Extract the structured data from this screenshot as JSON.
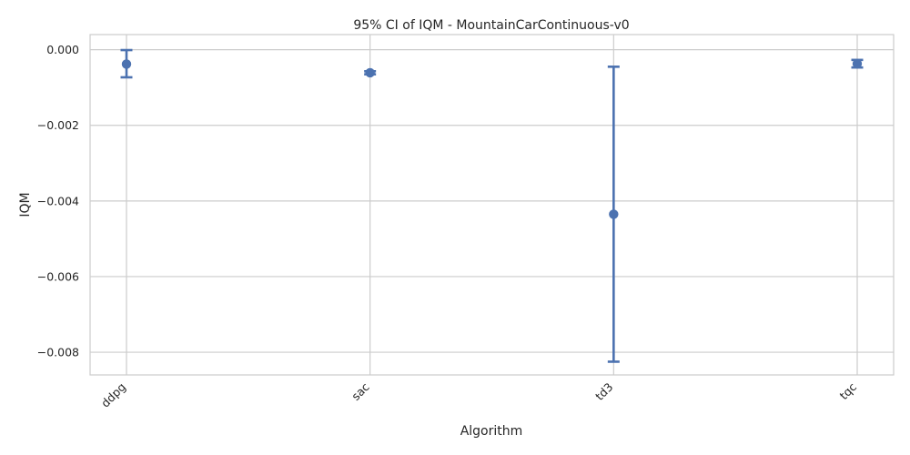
{
  "chart_data": {
    "type": "scatter",
    "title": "95% CI of IQM - MountainCarContinuous-v0",
    "xlabel": "Algorithm",
    "ylabel": "IQM",
    "categories": [
      "ddpg",
      "sac",
      "td3",
      "tqc"
    ],
    "series": [
      {
        "values": [
          -0.00038,
          -0.00061,
          -0.00435,
          -0.00037
        ],
        "ci_lower": [
          -0.00073,
          -0.00065,
          -0.00825,
          -0.00047
        ],
        "ci_upper": [
          -1e-05,
          -0.00057,
          -0.00045,
          -0.00027
        ]
      }
    ],
    "ylim": [
      -0.0086,
      0.0004
    ],
    "yticks": [
      0.0,
      -0.002,
      -0.004,
      -0.006,
      -0.008
    ],
    "ytick_labels": [
      "0.000",
      "−0.002",
      "−0.004",
      "−0.006",
      "−0.008"
    ],
    "grid": true,
    "legend": "none",
    "colors": {
      "series": "#4c72b0",
      "grid": "#cccccc",
      "text": "#262626"
    }
  }
}
